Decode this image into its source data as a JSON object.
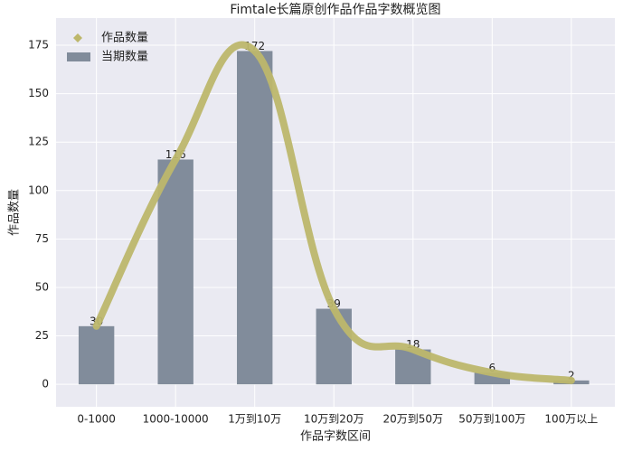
{
  "chart_data": {
    "type": "bar",
    "title": "Fimtale长篇原创作品作品字数概览图",
    "xlabel": "作品字数区间",
    "ylabel": "作品数量",
    "categories": [
      "0-1000",
      "1000-10000",
      "1万到10万",
      "10万到20万",
      "20万到50万",
      "50万到100万",
      "100万以上"
    ],
    "series": [
      {
        "name": "作品数量",
        "type": "line",
        "color": "#bdb76b",
        "values": [
          30,
          116,
          172,
          39,
          18,
          6,
          2
        ]
      },
      {
        "name": "当期数量",
        "type": "bar",
        "color": "#818c9b",
        "values": [
          30,
          116,
          172,
          39,
          18,
          6,
          2
        ]
      }
    ],
    "ylim": [
      -11.6,
      189
    ],
    "yticks": [
      0,
      25,
      50,
      75,
      100,
      125,
      150,
      175
    ],
    "grid": true,
    "legend": "upper left"
  }
}
